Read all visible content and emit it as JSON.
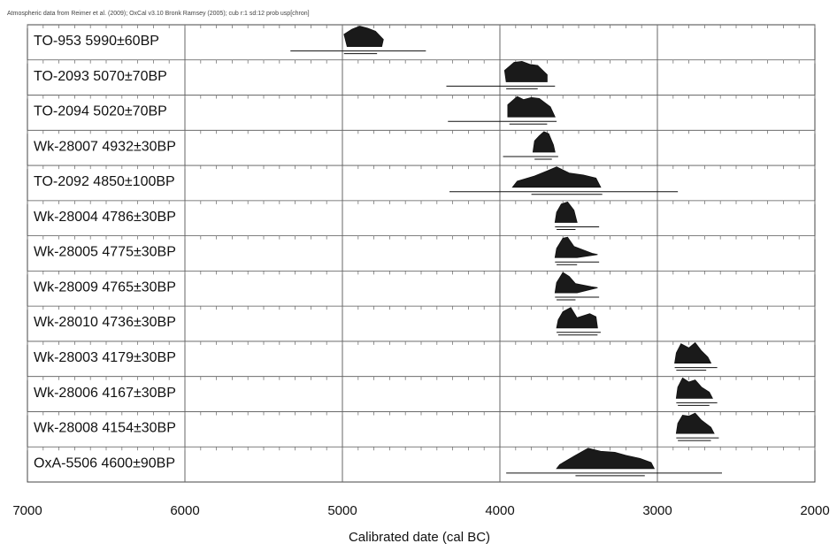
{
  "chart_data": {
    "type": "calibration-plot",
    "header": "Atmospheric data from Reimer et al. (2009); OxCal v3.10 Bronk Ramsey (2005); cub r:1 sd:12 prob usp[chron]",
    "xlabel": "Calibrated date (cal BC)",
    "xlim": [
      7000,
      2000
    ],
    "xticks": [
      7000,
      6000,
      5000,
      4000,
      3000,
      2000
    ],
    "grid": true,
    "samples": [
      {
        "label": "TO-953  5990±60BP",
        "range95": [
          5330,
          4470
        ],
        "range68": [
          4990,
          4780
        ],
        "core": [
          4970,
          4750
        ],
        "peaks": [
          [
            4990,
            0.6
          ],
          [
            4940,
            0.85
          ],
          [
            4890,
            1.0
          ],
          [
            4840,
            0.9
          ],
          [
            4790,
            0.75
          ],
          [
            4740,
            0.35
          ]
        ]
      },
      {
        "label": "TO-2093  5070±70BP",
        "range95": [
          4340,
          3650
        ],
        "range68": [
          3960,
          3760
        ],
        "core": [
          3960,
          3700
        ],
        "peaks": [
          [
            3970,
            0.55
          ],
          [
            3910,
            0.95
          ],
          [
            3860,
            1.0
          ],
          [
            3810,
            0.85
          ],
          [
            3760,
            0.8
          ],
          [
            3700,
            0.35
          ]
        ]
      },
      {
        "label": "TO-2094  5020±70BP",
        "range95": [
          4330,
          3640
        ],
        "range68": [
          3940,
          3700
        ],
        "core": [
          3950,
          3650
        ],
        "peaks": [
          [
            3950,
            0.6
          ],
          [
            3890,
            1.0
          ],
          [
            3850,
            0.85
          ],
          [
            3800,
            0.95
          ],
          [
            3750,
            0.9
          ],
          [
            3680,
            0.5
          ]
        ]
      },
      {
        "label": "Wk-28007  4932±30BP",
        "range95": [
          3980,
          3630
        ],
        "range68": [
          3780,
          3670
        ],
        "core": [
          3790,
          3650
        ],
        "peaks": [
          [
            3780,
            0.55
          ],
          [
            3750,
            0.8
          ],
          [
            3720,
            1.0
          ],
          [
            3690,
            0.9
          ],
          [
            3660,
            0.35
          ]
        ]
      },
      {
        "label": "TO-2092  4850±100BP",
        "range95": [
          4320,
          2870
        ],
        "range68": [
          3800,
          3350
        ],
        "core": [
          3920,
          3360
        ],
        "peaks": [
          [
            3890,
            0.3
          ],
          [
            3780,
            0.55
          ],
          [
            3700,
            0.8
          ],
          [
            3640,
            1.0
          ],
          [
            3560,
            0.7
          ],
          [
            3470,
            0.6
          ],
          [
            3390,
            0.45
          ]
        ]
      },
      {
        "label": "Wk-28004  4786±30BP",
        "range95": [
          3650,
          3370
        ],
        "range68": [
          3640,
          3520
        ],
        "core": [
          3650,
          3510
        ],
        "peaks": [
          [
            3640,
            0.5
          ],
          [
            3610,
            0.9
          ],
          [
            3570,
            1.0
          ],
          [
            3530,
            0.6
          ]
        ]
      },
      {
        "label": "Wk-28005  4775±30BP",
        "range95": [
          3650,
          3370
        ],
        "range68": [
          3640,
          3510
        ],
        "core": [
          3650,
          3510
        ],
        "peaks": [
          [
            3640,
            0.45
          ],
          [
            3600,
            0.95
          ],
          [
            3570,
            1.0
          ],
          [
            3530,
            0.55
          ],
          [
            3410,
            0.2
          ],
          [
            3380,
            0.15
          ]
        ]
      },
      {
        "label": "Wk-28009  4765±30BP",
        "range95": [
          3650,
          3370
        ],
        "range68": [
          3640,
          3520
        ],
        "core": [
          3650,
          3510
        ],
        "peaks": [
          [
            3640,
            0.5
          ],
          [
            3600,
            1.0
          ],
          [
            3560,
            0.8
          ],
          [
            3520,
            0.45
          ],
          [
            3420,
            0.3
          ],
          [
            3380,
            0.25
          ]
        ]
      },
      {
        "label": "Wk-28010  4736±30BP",
        "range95": [
          3640,
          3360
        ],
        "range68": [
          3630,
          3380
        ],
        "core": [
          3640,
          3380
        ],
        "peaks": [
          [
            3630,
            0.4
          ],
          [
            3600,
            0.8
          ],
          [
            3550,
            1.0
          ],
          [
            3510,
            0.5
          ],
          [
            3430,
            0.7
          ],
          [
            3390,
            0.55
          ]
        ]
      },
      {
        "label": "Wk-28003  4179±30BP",
        "range95": [
          2890,
          2620
        ],
        "range68": [
          2880,
          2690
        ],
        "core": [
          2890,
          2660
        ],
        "peaks": [
          [
            2880,
            0.5
          ],
          [
            2850,
            0.95
          ],
          [
            2800,
            0.75
          ],
          [
            2760,
            1.0
          ],
          [
            2720,
            0.6
          ],
          [
            2680,
            0.3
          ]
        ]
      },
      {
        "label": "Wk-28006  4167±30BP",
        "range95": [
          2880,
          2620
        ],
        "range68": [
          2870,
          2670
        ],
        "core": [
          2880,
          2650
        ],
        "peaks": [
          [
            2870,
            0.55
          ],
          [
            2840,
            1.0
          ],
          [
            2800,
            0.8
          ],
          [
            2760,
            0.9
          ],
          [
            2720,
            0.55
          ],
          [
            2670,
            0.3
          ]
        ]
      },
      {
        "label": "Wk-28008  4154±30BP",
        "range95": [
          2880,
          2610
        ],
        "range68": [
          2870,
          2660
        ],
        "core": [
          2880,
          2640
        ],
        "peaks": [
          [
            2870,
            0.5
          ],
          [
            2840,
            0.9
          ],
          [
            2800,
            0.85
          ],
          [
            2760,
            1.0
          ],
          [
            2720,
            0.65
          ],
          [
            2660,
            0.3
          ]
        ]
      },
      {
        "label": "OxA-5506  4600±90BP",
        "range95": [
          3640,
          3020
        ],
        "range68": [
          3520,
          3080
        ],
        "core": [
          3640,
          3020
        ],
        "peaks": [
          [
            3620,
            0.2
          ],
          [
            3520,
            0.65
          ],
          [
            3440,
            1.0
          ],
          [
            3360,
            0.85
          ],
          [
            3270,
            0.8
          ],
          [
            3200,
            0.65
          ],
          [
            3110,
            0.5
          ],
          [
            3040,
            0.3
          ]
        ],
        "tail": [
          3960,
          2590
        ]
      }
    ]
  }
}
